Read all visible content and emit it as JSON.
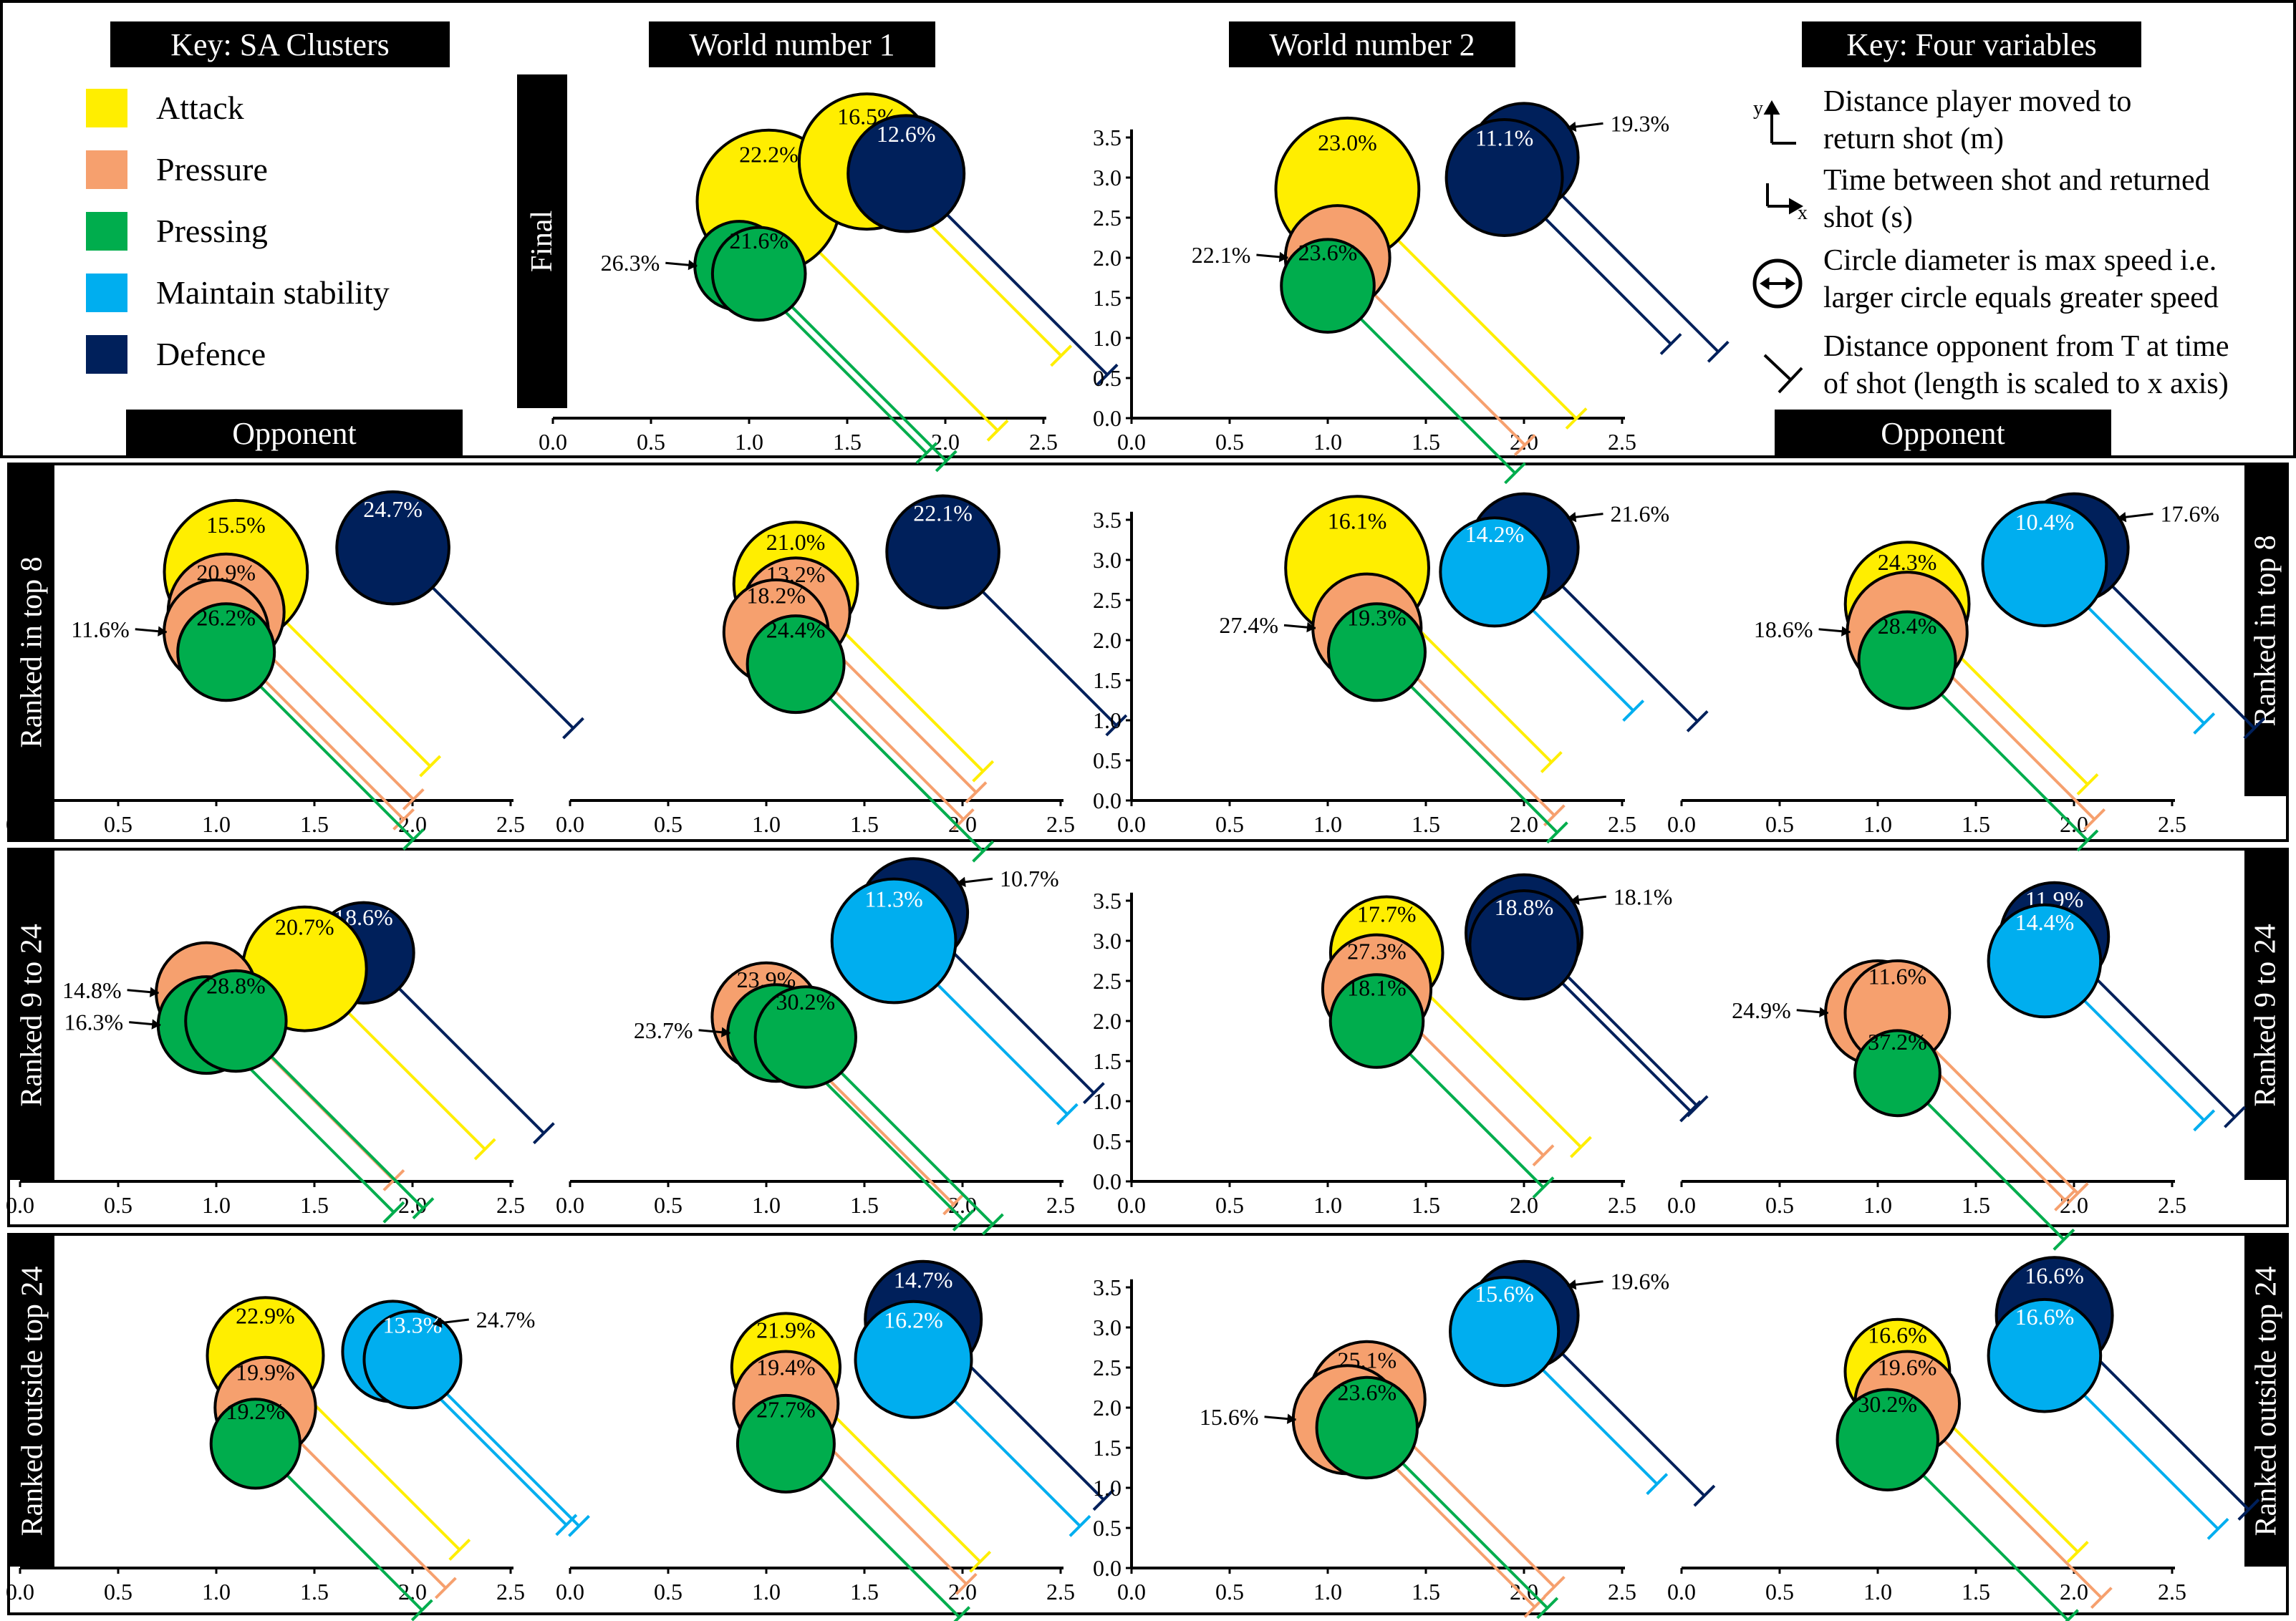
{
  "colors": {
    "Attack": "#ffee00",
    "Pressure": "#f6a06e",
    "Pressing": "#00ad4d",
    "Maintain stability": "#00aeef",
    "Defence": "#00205b"
  },
  "headers": {
    "key_clusters": "Key: SA Clusters",
    "world1": "World number 1",
    "world2": "World number 2",
    "key_vars": "Key: Four variables",
    "opponent_left": "Opponent",
    "opponent_right": "Opponent"
  },
  "cluster_key": [
    {
      "label": "Attack",
      "color": "#ffee00"
    },
    {
      "label": "Pressure",
      "color": "#f6a06e"
    },
    {
      "label": "Pressing",
      "color": "#00ad4d"
    },
    {
      "label": "Maintain stability",
      "color": "#00aeef"
    },
    {
      "label": "Defence",
      "color": "#00205b"
    }
  ],
  "variable_key": [
    {
      "icon": "y-axis-icon",
      "line1": "Distance player moved to",
      "line2": "return shot (m)"
    },
    {
      "icon": "x-axis-icon",
      "line1": "Time between shot and returned",
      "line2": "shot (s)"
    },
    {
      "icon": "diameter-icon",
      "line1": "Circle diameter is max speed i.e.",
      "line2": "larger circle equals greater speed"
    },
    {
      "icon": "whisker-icon",
      "line1": "Distance opponent from T at time",
      "line2": "of shot (length is scaled to x axis)"
    }
  ],
  "row_labels": {
    "final": "Final",
    "top8_left": "Ranked in top 8",
    "top8_right": "Ranked in top 8",
    "r9_left": "Ranked 9 to 24",
    "r9_right": "Ranked 9 to 24",
    "out_left": "Ranked outside top 24",
    "out_right": "Ranked outside top 24"
  },
  "chart_data": [
    {
      "id": "final_w1",
      "type": "scatter",
      "x_ticks": [
        "0.0",
        "0.5",
        "1.0",
        "1.5",
        "2.0",
        "2.5"
      ],
      "xlim": [
        0,
        2.5
      ],
      "ylim": [
        0,
        3.5
      ],
      "show_y_ticks": false,
      "clusters": [
        {
          "c": "Attack",
          "x": 1.1,
          "y": 2.7,
          "speed": 3.7,
          "opp": 1.65,
          "label": "22.2%",
          "ann": null
        },
        {
          "c": "Attack",
          "x": 1.6,
          "y": 3.2,
          "speed": 3.5,
          "opp": 1.4,
          "label": "16.5%",
          "ann": null
        },
        {
          "c": "Defence",
          "x": 1.8,
          "y": 3.05,
          "speed": 3.0,
          "opp": 1.45,
          "label": "12.6%",
          "ann": null
        },
        {
          "c": "Pressing",
          "x": 0.95,
          "y": 1.9,
          "speed": 2.3,
          "opp": 1.35,
          "label": "",
          "ann": "26.3%"
        },
        {
          "c": "Pressing",
          "x": 1.05,
          "y": 1.8,
          "speed": 2.4,
          "opp": 1.35,
          "label": "21.6%",
          "ann": null
        }
      ]
    },
    {
      "id": "final_w2",
      "type": "scatter",
      "x_ticks": [
        "0.0",
        "0.5",
        "1.0",
        "1.5",
        "2.0",
        "2.5"
      ],
      "xlim": [
        0,
        2.5
      ],
      "ylim": [
        0,
        3.5
      ],
      "show_y_ticks": true,
      "y_ticks": [
        "0.0",
        "0.5",
        "1.0",
        "1.5",
        "2.0",
        "2.5",
        "3.0",
        "3.5"
      ],
      "clusters": [
        {
          "c": "Attack",
          "x": 1.1,
          "y": 2.85,
          "speed": 3.7,
          "opp": 1.65,
          "label": "23.0%",
          "ann": null
        },
        {
          "c": "Defence",
          "x": 2.0,
          "y": 3.25,
          "speed": 2.8,
          "opp": 1.4,
          "label": "",
          "ann": "19.3%"
        },
        {
          "c": "Defence",
          "x": 1.9,
          "y": 3.0,
          "speed": 3.0,
          "opp": 1.2,
          "label": "11.1%",
          "ann": null
        },
        {
          "c": "Pressure",
          "x": 1.05,
          "y": 2.0,
          "speed": 2.7,
          "opp": 1.35,
          "label": "",
          "ann": "22.1%"
        },
        {
          "c": "Pressing",
          "x": 1.0,
          "y": 1.65,
          "speed": 2.4,
          "opp": 1.35,
          "label": "23.6%",
          "ann": null
        }
      ]
    },
    {
      "id": "top8_o",
      "type": "scatter",
      "x_ticks": [
        "0.0",
        "0.5",
        "1.0",
        "1.5",
        "2.0",
        "2.5"
      ],
      "xlim": [
        0,
        2.5
      ],
      "ylim": [
        0,
        3.5
      ],
      "show_y_ticks": false,
      "clusters": [
        {
          "c": "Attack",
          "x": 1.1,
          "y": 2.85,
          "speed": 3.7,
          "opp": 1.4,
          "label": "15.5%",
          "ann": null
        },
        {
          "c": "Defence",
          "x": 1.9,
          "y": 3.15,
          "speed": 2.9,
          "opp": 1.3,
          "label": "24.7%",
          "ann": null
        },
        {
          "c": "Pressure",
          "x": 1.05,
          "y": 2.35,
          "speed": 3.0,
          "opp": 1.35,
          "label": "20.9%",
          "ann": null
        },
        {
          "c": "Pressure",
          "x": 1.0,
          "y": 2.1,
          "speed": 2.7,
          "opp": 1.35,
          "label": "",
          "ann": "11.6%"
        },
        {
          "c": "Pressing",
          "x": 1.05,
          "y": 1.85,
          "speed": 2.5,
          "opp": 1.35,
          "label": "26.2%",
          "ann": null
        }
      ]
    },
    {
      "id": "top8_w1",
      "type": "scatter",
      "x_ticks": [
        "0.0",
        "0.5",
        "1.0",
        "1.5",
        "2.0",
        "2.5"
      ],
      "xlim": [
        0,
        2.5
      ],
      "ylim": [
        0,
        3.5
      ],
      "show_y_ticks": false,
      "clusters": [
        {
          "c": "Attack",
          "x": 1.15,
          "y": 2.7,
          "speed": 3.2,
          "opp": 1.35,
          "label": "21.0%",
          "ann": null
        },
        {
          "c": "Defence",
          "x": 1.9,
          "y": 3.1,
          "speed": 2.9,
          "opp": 1.25,
          "label": "22.1%",
          "ann": null
        },
        {
          "c": "Pressure",
          "x": 1.15,
          "y": 2.35,
          "speed": 2.8,
          "opp": 1.3,
          "label": "13.2%",
          "ann": null
        },
        {
          "c": "Pressure",
          "x": 1.05,
          "y": 2.1,
          "speed": 2.7,
          "opp": 1.35,
          "label": "18.2%",
          "ann": null
        },
        {
          "c": "Pressing",
          "x": 1.15,
          "y": 1.7,
          "speed": 2.5,
          "opp": 1.35,
          "label": "24.4%",
          "ann": null
        }
      ]
    },
    {
      "id": "top8_w2",
      "type": "scatter",
      "x_ticks": [
        "0.0",
        "0.5",
        "1.0",
        "1.5",
        "2.0",
        "2.5"
      ],
      "xlim": [
        0,
        2.5
      ],
      "ylim": [
        0,
        3.5
      ],
      "show_y_ticks": true,
      "y_ticks": [
        "0.0",
        "0.5",
        "1.0",
        "1.5",
        "2.0",
        "2.5",
        "3.0",
        "3.5"
      ],
      "clusters": [
        {
          "c": "Attack",
          "x": 1.15,
          "y": 2.9,
          "speed": 3.7,
          "opp": 1.4,
          "label": "16.1%",
          "ann": null
        },
        {
          "c": "Defence",
          "x": 2.0,
          "y": 3.15,
          "speed": 2.8,
          "opp": 1.25,
          "label": "",
          "ann": "21.6%"
        },
        {
          "c": "Maintain stability",
          "x": 1.85,
          "y": 2.85,
          "speed": 2.8,
          "opp": 1.0,
          "label": "14.2%",
          "ann": null
        },
        {
          "c": "Pressure",
          "x": 1.2,
          "y": 2.15,
          "speed": 2.8,
          "opp": 1.35,
          "label": "",
          "ann": "27.4%"
        },
        {
          "c": "Pressing",
          "x": 1.25,
          "y": 1.85,
          "speed": 2.5,
          "opp": 1.3,
          "label": "19.3%",
          "ann": null
        }
      ]
    },
    {
      "id": "top8_opp2",
      "type": "scatter",
      "x_ticks": [
        "0.0",
        "0.5",
        "1.0",
        "1.5",
        "2.0",
        "2.5"
      ],
      "xlim": [
        0,
        2.5
      ],
      "ylim": [
        0,
        3.5
      ],
      "show_y_ticks": false,
      "clusters": [
        {
          "c": "Attack",
          "x": 1.15,
          "y": 2.45,
          "speed": 3.2,
          "opp": 1.3,
          "label": "24.3%",
          "ann": null
        },
        {
          "c": "Defence",
          "x": 2.0,
          "y": 3.15,
          "speed": 2.8,
          "opp": 1.3,
          "label": "",
          "ann": "17.6%"
        },
        {
          "c": "Maintain stability",
          "x": 1.85,
          "y": 2.95,
          "speed": 3.2,
          "opp": 1.15,
          "label": "10.4%",
          "ann": null
        },
        {
          "c": "Pressure",
          "x": 1.15,
          "y": 2.1,
          "speed": 3.1,
          "opp": 1.35,
          "label": "",
          "ann": "18.6%"
        },
        {
          "c": "Pressing",
          "x": 1.15,
          "y": 1.75,
          "speed": 2.5,
          "opp": 1.3,
          "label": "28.4%",
          "ann": null
        }
      ]
    },
    {
      "id": "r9_o",
      "type": "scatter",
      "x_ticks": [
        "0.0",
        "0.5",
        "1.0",
        "1.5",
        "2.0",
        "2.5"
      ],
      "xlim": [
        0,
        2.5
      ],
      "ylim": [
        0,
        3.5
      ],
      "show_y_ticks": false,
      "clusters": [
        {
          "c": "Defence",
          "x": 1.75,
          "y": 2.85,
          "speed": 2.6,
          "opp": 1.3,
          "label": "18.6%",
          "ann": null
        },
        {
          "c": "Attack",
          "x": 1.45,
          "y": 2.65,
          "speed": 3.2,
          "opp": 1.3,
          "label": "20.7%",
          "ann": null
        },
        {
          "c": "Pressure",
          "x": 0.95,
          "y": 2.35,
          "speed": 2.6,
          "opp": 1.35,
          "label": "",
          "ann": "14.8%"
        },
        {
          "c": "Pressing",
          "x": 0.95,
          "y": 1.95,
          "speed": 2.5,
          "opp": 1.35,
          "label": "",
          "ann": "16.3%"
        },
        {
          "c": "Pressing",
          "x": 1.1,
          "y": 2.0,
          "speed": 2.6,
          "opp": 1.35,
          "label": "28.8%",
          "ann": null
        }
      ]
    },
    {
      "id": "r9_w1",
      "type": "scatter",
      "x_ticks": [
        "0.0",
        "0.5",
        "1.0",
        "1.5",
        "2.0",
        "2.5"
      ],
      "xlim": [
        0,
        2.5
      ],
      "ylim": [
        0,
        3.5
      ],
      "show_y_ticks": false,
      "clusters": [
        {
          "c": "Defence",
          "x": 1.75,
          "y": 3.35,
          "speed": 2.8,
          "opp": 1.3,
          "label": "",
          "ann": "10.7%"
        },
        {
          "c": "Maintain stability",
          "x": 1.65,
          "y": 3.0,
          "speed": 3.2,
          "opp": 1.25,
          "label": "11.3%",
          "ann": null
        },
        {
          "c": "Pressure",
          "x": 1.0,
          "y": 2.05,
          "speed": 2.8,
          "opp": 1.35,
          "label": "23.9%",
          "ann": null
        },
        {
          "c": "Pressing",
          "x": 1.05,
          "y": 1.85,
          "speed": 2.5,
          "opp": 1.35,
          "label": "",
          "ann": "23.7%"
        },
        {
          "c": "Pressing",
          "x": 1.2,
          "y": 1.8,
          "speed": 2.6,
          "opp": 1.35,
          "label": "30.2%",
          "ann": null
        }
      ]
    },
    {
      "id": "r9_w2",
      "type": "scatter",
      "x_ticks": [
        "0.0",
        "0.5",
        "1.0",
        "1.5",
        "2.0",
        "2.5"
      ],
      "xlim": [
        0,
        2.5
      ],
      "ylim": [
        0,
        3.5
      ],
      "show_y_ticks": true,
      "y_ticks": [
        "0.0",
        "0.5",
        "1.0",
        "1.5",
        "2.0",
        "2.5",
        "3.0",
        "3.5"
      ],
      "clusters": [
        {
          "c": "Attack",
          "x": 1.3,
          "y": 2.85,
          "speed": 2.9,
          "opp": 1.4,
          "label": "17.7%",
          "ann": null
        },
        {
          "c": "Defence",
          "x": 2.0,
          "y": 3.1,
          "speed": 3.0,
          "opp": 1.25,
          "label": "",
          "ann": "18.1%"
        },
        {
          "c": "Defence",
          "x": 2.0,
          "y": 2.95,
          "speed": 2.8,
          "opp": 1.2,
          "label": "18.8%",
          "ann": null
        },
        {
          "c": "Pressure",
          "x": 1.25,
          "y": 2.4,
          "speed": 2.8,
          "opp": 1.2,
          "label": "27.3%",
          "ann": null
        },
        {
          "c": "Pressing",
          "x": 1.25,
          "y": 2.0,
          "speed": 2.4,
          "opp": 1.2,
          "label": "18.1%",
          "ann": null
        }
      ]
    },
    {
      "id": "r9_opp2",
      "type": "scatter",
      "x_ticks": [
        "0.0",
        "0.5",
        "1.0",
        "1.5",
        "2.0",
        "2.5"
      ],
      "xlim": [
        0,
        2.5
      ],
      "ylim": [
        0,
        3.5
      ],
      "show_y_ticks": false,
      "clusters": [
        {
          "c": "Defence",
          "x": 1.9,
          "y": 3.05,
          "speed": 2.8,
          "opp": 1.3,
          "label": "11.9%",
          "ann": null
        },
        {
          "c": "Maintain stability",
          "x": 1.85,
          "y": 2.75,
          "speed": 2.9,
          "opp": 1.15,
          "label": "14.4%",
          "ann": null
        },
        {
          "c": "Pressure",
          "x": 1.0,
          "y": 2.1,
          "speed": 2.7,
          "opp": 1.35,
          "label": "",
          "ann": "24.9%"
        },
        {
          "c": "Pressure",
          "x": 1.1,
          "y": 2.1,
          "speed": 2.7,
          "opp": 1.3,
          "label": "11.6%",
          "ann": null
        },
        {
          "c": "Pressing",
          "x": 1.1,
          "y": 1.35,
          "speed": 2.2,
          "opp": 1.2,
          "label": "37.2%",
          "ann": null
        }
      ]
    },
    {
      "id": "out_o",
      "type": "scatter",
      "x_ticks": [
        "0.0",
        "0.5",
        "1.0",
        "1.5",
        "2.0",
        "2.5"
      ],
      "xlim": [
        0,
        2.5
      ],
      "ylim": [
        0,
        3.5
      ],
      "show_y_ticks": false,
      "clusters": [
        {
          "c": "Attack",
          "x": 1.25,
          "y": 2.65,
          "speed": 3.0,
          "opp": 1.4,
          "label": "22.9%",
          "ann": null
        },
        {
          "c": "Maintain stability",
          "x": 1.9,
          "y": 2.7,
          "speed": 2.6,
          "opp": 1.25,
          "label": "",
          "ann": "24.7%"
        },
        {
          "c": "Maintain stability",
          "x": 2.0,
          "y": 2.6,
          "speed": 2.5,
          "opp": 1.2,
          "label": "13.3%",
          "ann": null
        },
        {
          "c": "Pressure",
          "x": 1.25,
          "y": 2.0,
          "speed": 2.6,
          "opp": 1.3,
          "label": "19.9%",
          "ann": null
        },
        {
          "c": "Pressing",
          "x": 1.2,
          "y": 1.55,
          "speed": 2.3,
          "opp": 1.2,
          "label": "19.2%",
          "ann": null
        }
      ]
    },
    {
      "id": "out_w1",
      "type": "scatter",
      "x_ticks": [
        "0.0",
        "0.5",
        "1.0",
        "1.5",
        "2.0",
        "2.5"
      ],
      "xlim": [
        0,
        2.5
      ],
      "ylim": [
        0,
        3.5
      ],
      "show_y_ticks": false,
      "clusters": [
        {
          "c": "Defence",
          "x": 1.8,
          "y": 3.1,
          "speed": 3.0,
          "opp": 1.3,
          "label": "14.7%",
          "ann": null
        },
        {
          "c": "Attack",
          "x": 1.1,
          "y": 2.5,
          "speed": 2.8,
          "opp": 1.4,
          "label": "21.9%",
          "ann": null
        },
        {
          "c": "Maintain stability",
          "x": 1.75,
          "y": 2.6,
          "speed": 3.0,
          "opp": 1.2,
          "label": "16.2%",
          "ann": null
        },
        {
          "c": "Pressure",
          "x": 1.1,
          "y": 2.05,
          "speed": 2.7,
          "opp": 1.3,
          "label": "19.4%",
          "ann": null
        },
        {
          "c": "Pressing",
          "x": 1.1,
          "y": 1.55,
          "speed": 2.5,
          "opp": 1.25,
          "label": "27.7%",
          "ann": null
        }
      ]
    },
    {
      "id": "out_w2",
      "type": "scatter",
      "x_ticks": [
        "0.0",
        "0.5",
        "1.0",
        "1.5",
        "2.0",
        "2.5"
      ],
      "xlim": [
        0,
        2.5
      ],
      "ylim": [
        0,
        3.5
      ],
      "show_y_ticks": true,
      "y_ticks": [
        "0.0",
        "0.5",
        "1.0",
        "1.5",
        "2.0",
        "2.5",
        "3.0",
        "3.5"
      ],
      "clusters": [
        {
          "c": "Defence",
          "x": 2.0,
          "y": 3.15,
          "speed": 2.8,
          "opp": 1.3,
          "label": "",
          "ann": "19.6%"
        },
        {
          "c": "Maintain stability",
          "x": 1.9,
          "y": 2.95,
          "speed": 2.8,
          "opp": 1.1,
          "label": "15.6%",
          "ann": null
        },
        {
          "c": "Pressure",
          "x": 1.2,
          "y": 2.1,
          "speed": 3.0,
          "opp": 1.35,
          "label": "25.1%",
          "ann": null
        },
        {
          "c": "Pressure",
          "x": 1.1,
          "y": 1.85,
          "speed": 2.8,
          "opp": 1.35,
          "label": "",
          "ann": "15.6%"
        },
        {
          "c": "Pressing",
          "x": 1.2,
          "y": 1.75,
          "speed": 2.6,
          "opp": 1.3,
          "label": "23.6%",
          "ann": null
        }
      ]
    },
    {
      "id": "out_opp2",
      "type": "scatter",
      "x_ticks": [
        "0.0",
        "0.5",
        "1.0",
        "1.5",
        "2.0",
        "2.5"
      ],
      "xlim": [
        0,
        2.5
      ],
      "ylim": [
        0,
        3.5
      ],
      "show_y_ticks": false,
      "clusters": [
        {
          "c": "Defence",
          "x": 1.9,
          "y": 3.15,
          "speed": 3.0,
          "opp": 1.4,
          "label": "16.6%",
          "ann": null
        },
        {
          "c": "Attack",
          "x": 1.1,
          "y": 2.45,
          "speed": 2.7,
          "opp": 1.3,
          "label": "16.6%",
          "ann": null
        },
        {
          "c": "Maintain stability",
          "x": 1.85,
          "y": 2.65,
          "speed": 2.9,
          "opp": 1.25,
          "label": "16.6%",
          "ann": null
        },
        {
          "c": "Pressure",
          "x": 1.15,
          "y": 2.05,
          "speed": 2.7,
          "opp": 1.4,
          "label": "19.6%",
          "ann": null
        },
        {
          "c": "Pressing",
          "x": 1.05,
          "y": 1.6,
          "speed": 2.6,
          "opp": 1.3,
          "label": "30.2%",
          "ann": null
        }
      ]
    }
  ]
}
